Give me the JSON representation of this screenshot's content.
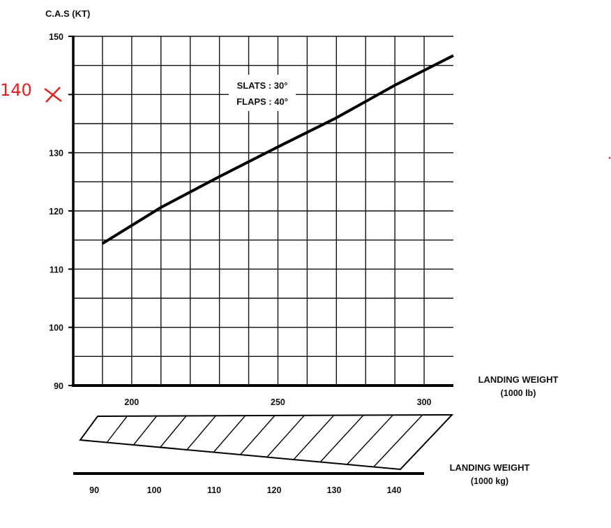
{
  "chart_data": {
    "type": "line",
    "y_axis_title": "C.A.S (KT)",
    "y_ticks": [
      "90",
      "100",
      "110",
      "120",
      "130",
      "",
      "150"
    ],
    "y_tick_values": [
      90,
      100,
      110,
      120,
      130,
      140,
      150
    ],
    "ylim": [
      90,
      150
    ],
    "x_axis_title_line1": "LANDING WEIGHT",
    "x_axis_title_line2": "(1000 lb)",
    "x_ticks": [
      "200",
      "250",
      "300"
    ],
    "x_tick_values": [
      200,
      250,
      300
    ],
    "xlim": [
      180,
      310
    ],
    "grid": true,
    "series": [
      {
        "x": [
          190,
          210,
          230,
          250,
          270,
          290,
          310
        ],
        "y": [
          114.4,
          120.6,
          125.9,
          131.0,
          136.0,
          141.6,
          146.7
        ]
      }
    ],
    "annotation_line1": "SLATS : 30°",
    "annotation_line2": "FLAPS : 40°",
    "handwritten_note": "140",
    "kg_axis": {
      "title_line1": "LANDING WEIGHT",
      "title_line2": "(1000 kg)",
      "ticks": [
        "90",
        "100",
        "110",
        "120",
        "130",
        "140"
      ],
      "tick_values": [
        90,
        100,
        110,
        120,
        130,
        140
      ],
      "range": [
        86.5,
        145
      ]
    }
  }
}
